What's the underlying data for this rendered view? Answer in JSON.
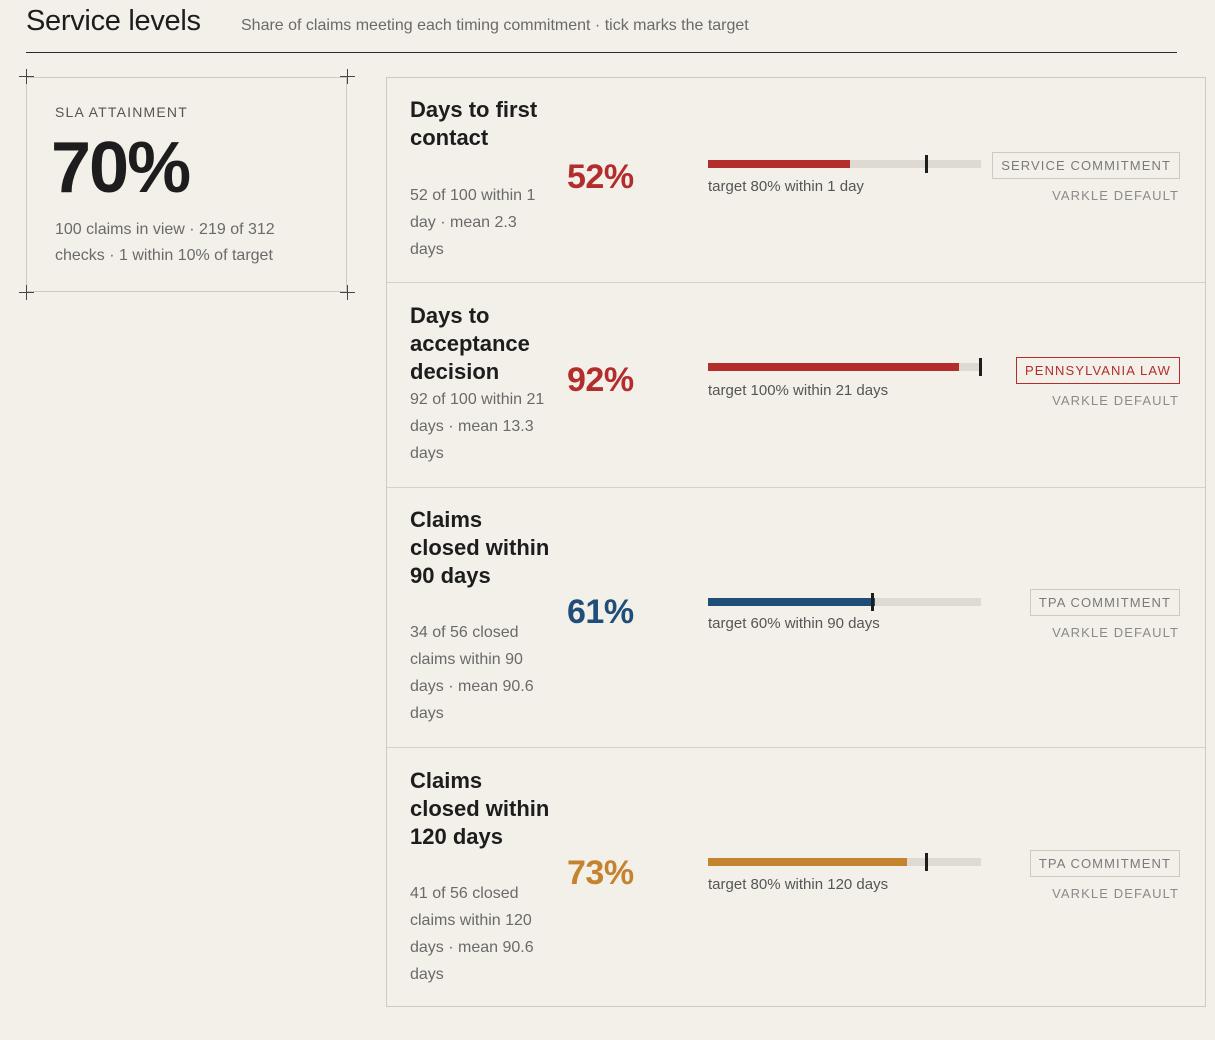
{
  "header": {
    "title": "Service levels",
    "subtitle": "Share of claims meeting each timing commitment · tick marks the target"
  },
  "summary": {
    "label": "SLA ATTAINMENT",
    "value": "70%",
    "note": "100 claims in view · 219 of 312 checks · 1 within 10% of target"
  },
  "metrics": [
    {
      "title": "Days to first contact",
      "description": "52 of 100 within 1 day · mean 2.3 days",
      "percent_label": "52%",
      "percent": 52,
      "target_percent": 80,
      "target_text": "target 80% within 1 day",
      "badge": "SERVICE COMMITMENT",
      "badge_type": "commitment",
      "source": "VARKLE DEFAULT",
      "color": "#b32d2d"
    },
    {
      "title": "Days to acceptance decision",
      "description": "92 of 100 within 21 days · mean 13.3 days",
      "percent_label": "92%",
      "percent": 92,
      "target_percent": 100,
      "target_text": "target 100% within 21 days",
      "badge": "PENNSYLVANIA LAW",
      "badge_type": "law",
      "source": "VARKLE DEFAULT",
      "color": "#b32d2d"
    },
    {
      "title": "Claims closed within 90 days",
      "description": "34 of 56 closed claims within 90 days · mean 90.6 days",
      "percent_label": "61%",
      "percent": 61,
      "target_percent": 60,
      "target_text": "target 60% within 90 days",
      "badge": "TPA COMMITMENT",
      "badge_type": "commitment",
      "source": "VARKLE DEFAULT",
      "color": "#1f4e79"
    },
    {
      "title": "Claims closed within 120 days",
      "description": "41 of 56 closed claims within 120 days · mean 90.6 days",
      "percent_label": "73%",
      "percent": 73,
      "target_percent": 80,
      "target_text": "target 80% within 120 days",
      "badge": "TPA COMMITMENT",
      "badge_type": "commitment",
      "source": "VARKLE DEFAULT",
      "color": "#c4832e"
    }
  ]
}
